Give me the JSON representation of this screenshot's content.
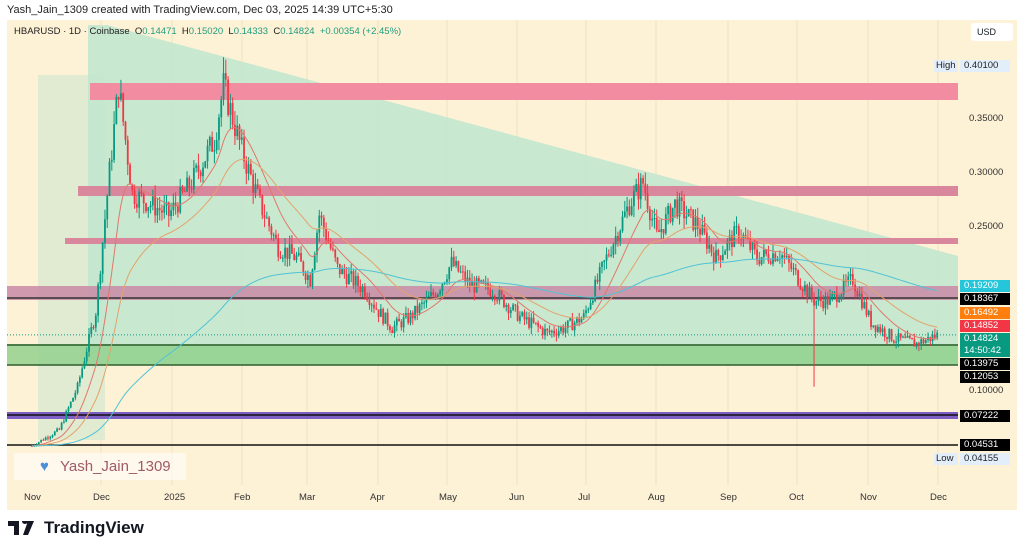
{
  "caption": "Yash_Jain_1309 created with TradingView.com, Dec 03, 2025 14:39 UTC+5:30",
  "legend": {
    "symbol": "HBARUSD · 1D · Coinbase",
    "o_label": "O",
    "o": "0.14471",
    "h_label": "H",
    "h": "0.15020",
    "l_label": "L",
    "l": "0.14333",
    "c_label": "C",
    "c": "0.14824",
    "change": "+0.00354 (+2.45%)"
  },
  "currency": "USD",
  "high": {
    "label": "High",
    "value": "0.40100"
  },
  "low": {
    "label": "Low",
    "value": "0.04155"
  },
  "price_ticks": [
    "0.35000",
    "0.30000",
    "0.25000",
    "0.10000"
  ],
  "price_labels": [
    {
      "value": "0.19209",
      "color": "#26c6da"
    },
    {
      "value": "0.18367",
      "color": "#000000"
    },
    {
      "value": "0.16492",
      "color": "#ff7f0e"
    },
    {
      "value": "0.14852",
      "color": "#f23645"
    },
    {
      "value": "0.14824",
      "color": "#089981",
      "sub": "14:50:42"
    },
    {
      "value": "0.13975",
      "color": "#000000"
    },
    {
      "value": "0.12053",
      "color": "#000000"
    },
    {
      "value": "0.07222",
      "color": "#000000"
    },
    {
      "value": "0.04531",
      "color": "#000000"
    }
  ],
  "time_ticks": [
    "Nov",
    "Dec",
    "2025",
    "Feb",
    "Mar",
    "Apr",
    "May",
    "Jun",
    "Jul",
    "Aug",
    "Sep",
    "Oct",
    "Nov",
    "Dec"
  ],
  "watermark": "Yash_Jain_1309",
  "brand": "TradingView",
  "chart_data": {
    "type": "candlestick",
    "symbol": "HBARUSD",
    "interval": "1D",
    "keypoints_day_price": [
      [
        0,
        0.045
      ],
      [
        12,
        0.06
      ],
      [
        20,
        0.1
      ],
      [
        28,
        0.17
      ],
      [
        34,
        0.3
      ],
      [
        38,
        0.38
      ],
      [
        44,
        0.28
      ],
      [
        52,
        0.27
      ],
      [
        60,
        0.26
      ],
      [
        70,
        0.29
      ],
      [
        80,
        0.33
      ],
      [
        84,
        0.38
      ],
      [
        92,
        0.32
      ],
      [
        100,
        0.27
      ],
      [
        108,
        0.23
      ],
      [
        116,
        0.22
      ],
      [
        122,
        0.2
      ],
      [
        126,
        0.26
      ],
      [
        134,
        0.21
      ],
      [
        146,
        0.19
      ],
      [
        152,
        0.17
      ],
      [
        158,
        0.155
      ],
      [
        166,
        0.165
      ],
      [
        178,
        0.19
      ],
      [
        184,
        0.215
      ],
      [
        192,
        0.195
      ],
      [
        202,
        0.19
      ],
      [
        214,
        0.165
      ],
      [
        226,
        0.15
      ],
      [
        234,
        0.155
      ],
      [
        242,
        0.165
      ],
      [
        252,
        0.22
      ],
      [
        262,
        0.27
      ],
      [
        268,
        0.29
      ],
      [
        274,
        0.24
      ],
      [
        282,
        0.27
      ],
      [
        292,
        0.25
      ],
      [
        300,
        0.22
      ],
      [
        310,
        0.245
      ],
      [
        318,
        0.22
      ],
      [
        328,
        0.225
      ],
      [
        343,
        0.18
      ],
      [
        350,
        0.18
      ],
      [
        360,
        0.2
      ],
      [
        368,
        0.16
      ],
      [
        378,
        0.145
      ],
      [
        388,
        0.14
      ],
      [
        397,
        0.148
      ]
    ]
  }
}
